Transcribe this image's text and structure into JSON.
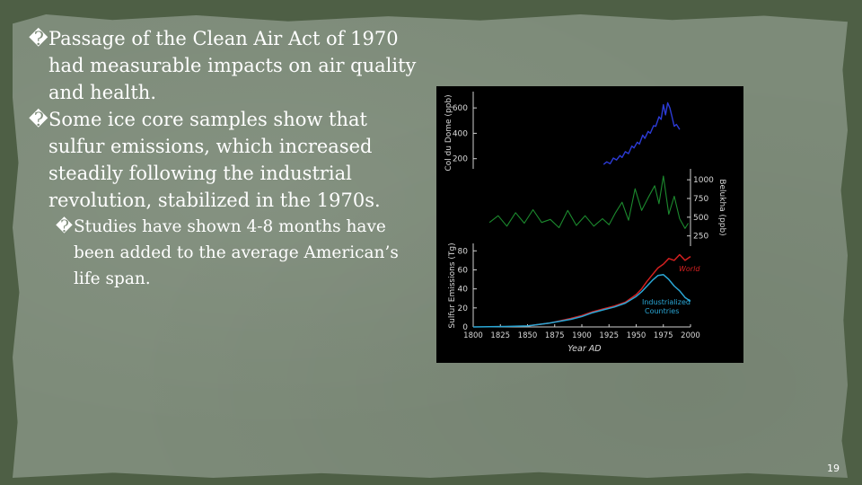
{
  "slide": {
    "bullet_marker": "�",
    "bullets": [
      {
        "level": 1,
        "text": "Passage of the Clean Air Act of 1970 had measurable impacts on air quality and health."
      },
      {
        "level": 1,
        "text": "Some ice core samples show that sulfur emissions, which increased steadily following the industrial revolution, stabilized in the 1970s."
      },
      {
        "level": 2,
        "text": "Studies have shown 4-8 months have been added to the average American’s life span."
      }
    ],
    "page_number": "19"
  },
  "chart_data": [
    {
      "type": "line",
      "title": "",
      "ylabel": "Col du Dome (ppb)",
      "yticks": [
        "600",
        "400",
        "200"
      ],
      "ylim": [
        120,
        700
      ],
      "color": "#2c3bd6",
      "series": [
        {
          "name": "Col du Dome",
          "x": [
            1920,
            1923,
            1926,
            1929,
            1932,
            1935,
            1937,
            1940,
            1943,
            1946,
            1948,
            1951,
            1953,
            1956,
            1958,
            1961,
            1963,
            1966,
            1968,
            1971,
            1973,
            1975,
            1977,
            1979,
            1981,
            1983,
            1985,
            1987,
            1989,
            1990
          ],
          "values": [
            155,
            175,
            160,
            205,
            190,
            225,
            210,
            255,
            240,
            300,
            285,
            330,
            315,
            385,
            360,
            415,
            400,
            460,
            455,
            530,
            510,
            625,
            545,
            640,
            600,
            530,
            455,
            470,
            445,
            430
          ]
        }
      ]
    },
    {
      "type": "line",
      "title": "",
      "ylabel": "Belukha (ppb)",
      "yticks": [
        "1000",
        "750",
        "500",
        "250"
      ],
      "ylim": [
        150,
        1050
      ],
      "color": "#1c8a2e",
      "series": [
        {
          "name": "Belukha",
          "x": [
            1815,
            1823,
            1831,
            1839,
            1847,
            1855,
            1863,
            1871,
            1879,
            1887,
            1895,
            1903,
            1911,
            1919,
            1925,
            1931,
            1937,
            1943,
            1949,
            1955,
            1961,
            1967,
            1971,
            1975,
            1980,
            1985,
            1990,
            1995,
            1998
          ],
          "values": [
            430,
            520,
            380,
            560,
            420,
            600,
            430,
            470,
            360,
            590,
            390,
            520,
            380,
            480,
            400,
            560,
            700,
            460,
            880,
            590,
            760,
            920,
            680,
            1050,
            540,
            780,
            480,
            350,
            420
          ]
        }
      ]
    },
    {
      "type": "line",
      "title": "",
      "xlabel": "Year AD",
      "ylabel": "Sulfur Emissions (Tg)",
      "categories": [
        "1800",
        "1825",
        "1850",
        "1875",
        "1900",
        "1925",
        "1950",
        "1975",
        "2000"
      ],
      "yticks": [
        "0",
        "20",
        "40",
        "60",
        "80"
      ],
      "xlim": [
        1800,
        2000
      ],
      "ylim": [
        0,
        85
      ],
      "series": [
        {
          "name": "World",
          "color": "#d32020",
          "x": [
            1850,
            1870,
            1890,
            1900,
            1910,
            1920,
            1930,
            1940,
            1950,
            1955,
            1960,
            1965,
            1970,
            1975,
            1980,
            1985,
            1990,
            1995,
            2000
          ],
          "values": [
            1,
            4,
            9,
            12,
            16,
            19,
            22,
            26,
            34,
            40,
            48,
            55,
            62,
            66,
            72,
            70,
            76,
            70,
            74
          ]
        },
        {
          "name": "Industrialized Countries",
          "color": "#2aa7d6",
          "x": [
            1800,
            1830,
            1850,
            1870,
            1890,
            1900,
            1910,
            1920,
            1930,
            1940,
            1950,
            1955,
            1960,
            1965,
            1970,
            1975,
            1980,
            1985,
            1990,
            1995,
            2000
          ],
          "values": [
            0,
            0.5,
            1,
            4,
            8,
            11,
            15,
            18,
            21,
            25,
            32,
            37,
            43,
            49,
            54,
            55,
            50,
            43,
            38,
            31,
            27
          ]
        }
      ],
      "annotations": [
        "World",
        "Industrialized Countries"
      ]
    }
  ]
}
